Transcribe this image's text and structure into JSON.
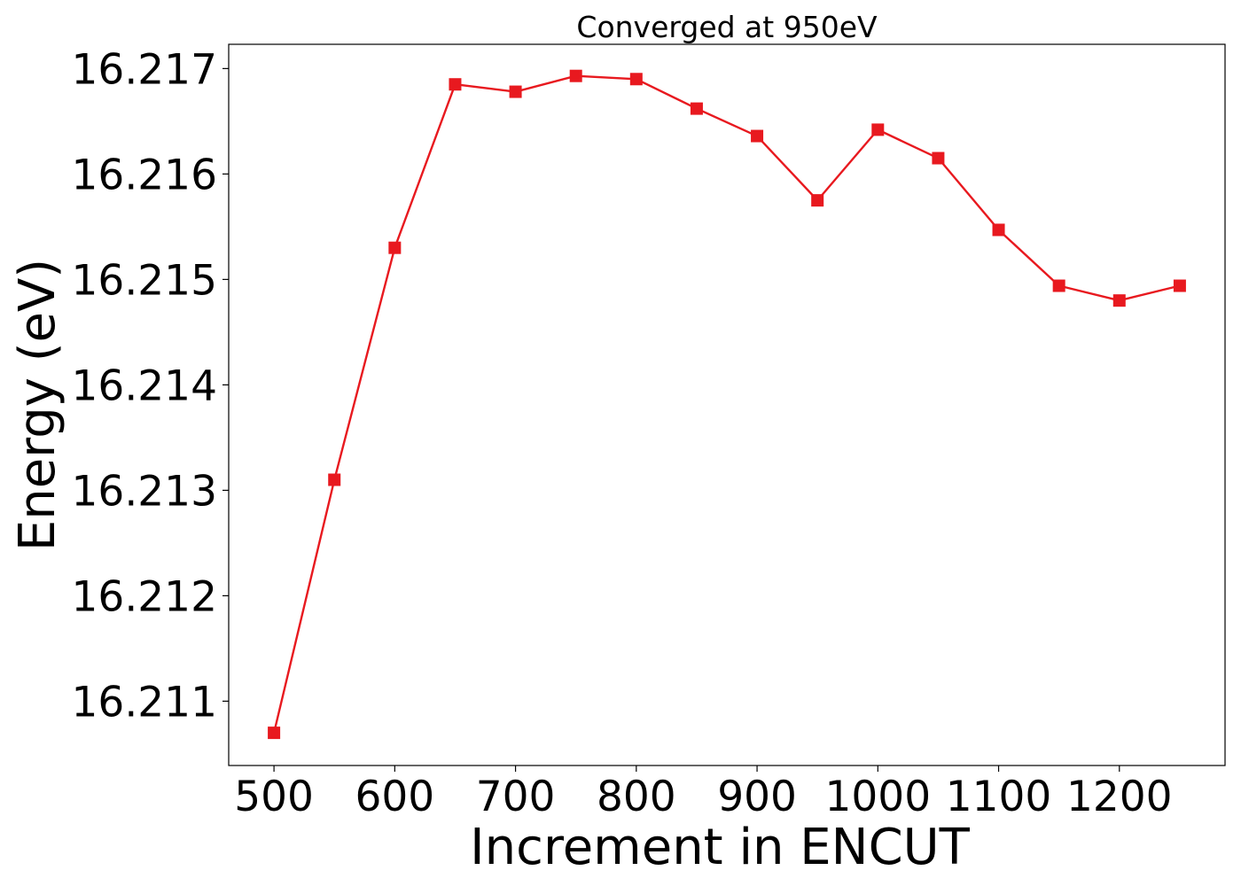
{
  "chart_data": {
    "type": "line",
    "title": "Converged at 950eV",
    "xlabel": "Increment in ENCUT",
    "ylabel": "Energy (eV)",
    "x": [
      500,
      550,
      600,
      650,
      700,
      750,
      800,
      850,
      900,
      950,
      1000,
      1050,
      1100,
      1150,
      1200,
      1250
    ],
    "series": [
      {
        "values": [
          16.2107,
          16.2131,
          16.2153,
          16.21685,
          16.21678,
          16.21693,
          16.2169,
          16.21662,
          16.21636,
          16.21575,
          16.21642,
          16.21615,
          16.21547,
          16.21494,
          16.2148,
          16.21494
        ],
        "color": "#e8191f",
        "marker": "square"
      }
    ],
    "xticks": [
      "500",
      "600",
      "700",
      "800",
      "900",
      "1000",
      "1100",
      "1200"
    ],
    "yticks": [
      "16.211",
      "16.212",
      "16.213",
      "16.214",
      "16.215",
      "16.216",
      "16.217"
    ],
    "xlim": [
      462.5,
      1287.5
    ],
    "ylim": [
      16.21039,
      16.21723
    ],
    "grid": false,
    "legend": "none"
  }
}
